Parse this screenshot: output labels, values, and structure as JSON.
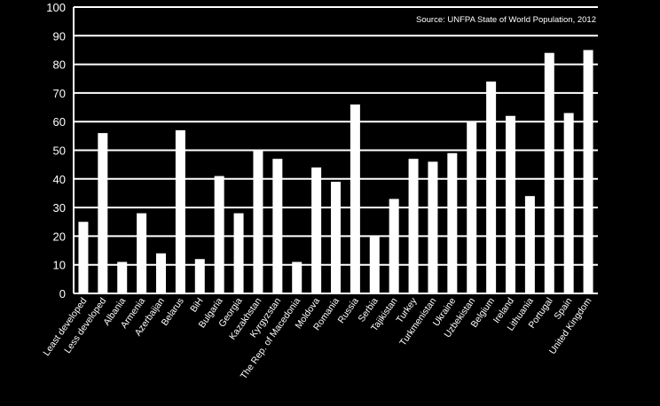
{
  "chart_data": {
    "type": "bar",
    "source": "Source: UNFPA State of World Population, 2012",
    "ylim": [
      0,
      100
    ],
    "yticks": [
      0,
      10,
      20,
      30,
      40,
      50,
      60,
      70,
      80,
      90,
      100
    ],
    "grid": true,
    "categories": [
      "Least developed",
      "Less developed",
      "Albania",
      "Armenia",
      "Azerbaijan",
      "Belarus",
      "BiH",
      "Bulgaria",
      "Georgia",
      "Kazakhstan",
      "Kyrgyzstan",
      "The Rep. of Macedonia",
      "Moldova",
      "Romania",
      "Russia",
      "Serbia",
      "Tajikistan",
      "Turkey",
      "Turkmenistan",
      "Ukraine",
      "Uzbekistan",
      "Belgium",
      "Ireland",
      "Lithuania",
      "Portugal",
      "Spain",
      "United Kingdom"
    ],
    "values": [
      25,
      56,
      11,
      28,
      14,
      57,
      12,
      41,
      28,
      50,
      47,
      11,
      44,
      39,
      66,
      20,
      33,
      47,
      46,
      49,
      60,
      74,
      62,
      34,
      84,
      63,
      85
    ],
    "colors": {
      "background": "#000000",
      "bar": "#ffffff",
      "grid": "#ffffff"
    }
  }
}
